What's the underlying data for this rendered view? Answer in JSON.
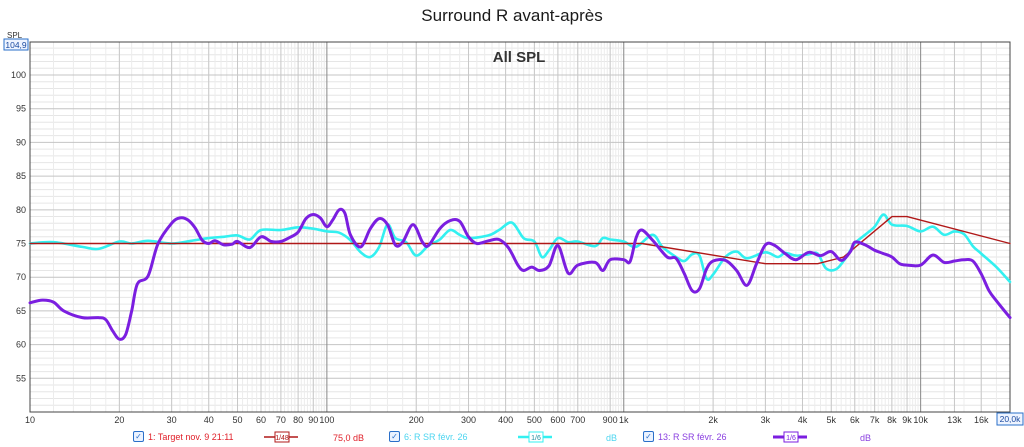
{
  "chart_data": {
    "type": "line",
    "title": "Surround R avant-après",
    "subtitle": "All SPL",
    "y_axis_unit": "SPL",
    "y_top_readout": "104,9",
    "x_scale": "log",
    "xlim": [
      10,
      20000
    ],
    "ylim": [
      50,
      104.9
    ],
    "grid": true,
    "x_ticks": [
      {
        "v": 10,
        "label": "10"
      },
      {
        "v": 20,
        "label": "20"
      },
      {
        "v": 30,
        "label": "30"
      },
      {
        "v": 40,
        "label": "40"
      },
      {
        "v": 50,
        "label": "50"
      },
      {
        "v": 60,
        "label": "60"
      },
      {
        "v": 70,
        "label": "70"
      },
      {
        "v": 80,
        "label": "80"
      },
      {
        "v": 90,
        "label": "90"
      },
      {
        "v": 100,
        "label": "100"
      },
      {
        "v": 200,
        "label": "200"
      },
      {
        "v": 300,
        "label": "300"
      },
      {
        "v": 400,
        "label": "400"
      },
      {
        "v": 500,
        "label": "500"
      },
      {
        "v": 600,
        "label": "600"
      },
      {
        "v": 700,
        "label": "700"
      },
      {
        "v": 900,
        "label": "900"
      },
      {
        "v": 1000,
        "label": "1k"
      },
      {
        "v": 2000,
        "label": "2k"
      },
      {
        "v": 3000,
        "label": "3k"
      },
      {
        "v": 4000,
        "label": "4k"
      },
      {
        "v": 5000,
        "label": "5k"
      },
      {
        "v": 6000,
        "label": "6k"
      },
      {
        "v": 7000,
        "label": "7k"
      },
      {
        "v": 8000,
        "label": "8k"
      },
      {
        "v": 9000,
        "label": "9k"
      },
      {
        "v": 10000,
        "label": "10k"
      },
      {
        "v": 13000,
        "label": "13k"
      },
      {
        "v": 16000,
        "label": "16k"
      },
      {
        "v": 20000,
        "label": "20,0k"
      }
    ],
    "y_ticks": [
      55,
      60,
      65,
      70,
      75,
      80,
      85,
      90,
      95,
      100
    ],
    "series": [
      {
        "name": "1: Target nov. 9 21:11",
        "color": "#b01818",
        "width": 1.4,
        "points": [
          [
            10,
            75
          ],
          [
            1150,
            75
          ],
          [
            3000,
            72
          ],
          [
            4500,
            72
          ],
          [
            5500,
            73
          ],
          [
            8000,
            79
          ],
          [
            9000,
            79
          ],
          [
            20000,
            75
          ]
        ]
      },
      {
        "name": "6: R SR févr. 26",
        "color": "#33f0f0",
        "width": 2.6,
        "points": [
          [
            10,
            75
          ],
          [
            12,
            75.2
          ],
          [
            15,
            74.5
          ],
          [
            17,
            74.2
          ],
          [
            20,
            75.3
          ],
          [
            22,
            75
          ],
          [
            25,
            75.4
          ],
          [
            30,
            75
          ],
          [
            35,
            75.4
          ],
          [
            40,
            75.8
          ],
          [
            45,
            76
          ],
          [
            50,
            76.2
          ],
          [
            55,
            75.6
          ],
          [
            60,
            77
          ],
          [
            70,
            77
          ],
          [
            80,
            77.4
          ],
          [
            90,
            77.2
          ],
          [
            100,
            76.8
          ],
          [
            110,
            76.6
          ],
          [
            120,
            75.5
          ],
          [
            130,
            73.7
          ],
          [
            140,
            73
          ],
          [
            150,
            74.5
          ],
          [
            160,
            77.8
          ],
          [
            170,
            75.8
          ],
          [
            185,
            75.2
          ],
          [
            200,
            73.2
          ],
          [
            220,
            74.7
          ],
          [
            240,
            75.6
          ],
          [
            260,
            77
          ],
          [
            280,
            76.3
          ],
          [
            300,
            75.8
          ],
          [
            350,
            76.2
          ],
          [
            380,
            77
          ],
          [
            420,
            78.1
          ],
          [
            460,
            75.8
          ],
          [
            500,
            75.3
          ],
          [
            530,
            73
          ],
          [
            560,
            74
          ],
          [
            600,
            75.8
          ],
          [
            650,
            75.2
          ],
          [
            700,
            75.3
          ],
          [
            800,
            74.6
          ],
          [
            850,
            75.8
          ],
          [
            900,
            75.6
          ],
          [
            1000,
            75.3
          ],
          [
            1100,
            74.5
          ],
          [
            1250,
            76.3
          ],
          [
            1350,
            74.5
          ],
          [
            1500,
            73
          ],
          [
            1600,
            72.4
          ],
          [
            1700,
            73.4
          ],
          [
            1800,
            73.2
          ],
          [
            1900,
            69.8
          ],
          [
            2000,
            70.4
          ],
          [
            2200,
            73
          ],
          [
            2400,
            73.8
          ],
          [
            2600,
            72.8
          ],
          [
            3000,
            73.7
          ],
          [
            3300,
            73
          ],
          [
            3500,
            73.6
          ],
          [
            3800,
            73.2
          ],
          [
            4200,
            73.4
          ],
          [
            4500,
            73.5
          ],
          [
            4800,
            71.3
          ],
          [
            5200,
            71.2
          ],
          [
            5600,
            72.9
          ],
          [
            6000,
            75
          ],
          [
            6500,
            76.3
          ],
          [
            7000,
            77.5
          ],
          [
            7500,
            79.3
          ],
          [
            8000,
            77.8
          ],
          [
            9000,
            77.6
          ],
          [
            10000,
            76.8
          ],
          [
            11000,
            77.5
          ],
          [
            12000,
            76.3
          ],
          [
            13000,
            76.8
          ],
          [
            14000,
            76.4
          ],
          [
            15000,
            74.6
          ],
          [
            16000,
            73.5
          ],
          [
            18000,
            71.5
          ],
          [
            20000,
            69.3
          ]
        ]
      },
      {
        "name": "13: R SR févr. 26",
        "color": "#7b1ee0",
        "width": 3,
        "points": [
          [
            10,
            66.2
          ],
          [
            11,
            66.6
          ],
          [
            12,
            66.3
          ],
          [
            13,
            65
          ],
          [
            15,
            64
          ],
          [
            17,
            64
          ],
          [
            18,
            63.7
          ],
          [
            19,
            62
          ],
          [
            20,
            60.8
          ],
          [
            21,
            61.5
          ],
          [
            22,
            65
          ],
          [
            23,
            69
          ],
          [
            25,
            70.2
          ],
          [
            27,
            75
          ],
          [
            30,
            78
          ],
          [
            32,
            78.8
          ],
          [
            34,
            78.5
          ],
          [
            36,
            77.3
          ],
          [
            38,
            75.5
          ],
          [
            40,
            75
          ],
          [
            42,
            75.4
          ],
          [
            45,
            74.8
          ],
          [
            48,
            74.9
          ],
          [
            50,
            75.3
          ],
          [
            55,
            74.4
          ],
          [
            60,
            76
          ],
          [
            65,
            75.3
          ],
          [
            70,
            75.3
          ],
          [
            75,
            75.9
          ],
          [
            80,
            76.7
          ],
          [
            85,
            78.7
          ],
          [
            90,
            79.3
          ],
          [
            95,
            78.8
          ],
          [
            100,
            77.5
          ],
          [
            105,
            78.6
          ],
          [
            110,
            80
          ],
          [
            115,
            79.5
          ],
          [
            120,
            76.3
          ],
          [
            130,
            74.5
          ],
          [
            140,
            77.2
          ],
          [
            150,
            78.7
          ],
          [
            160,
            77.8
          ],
          [
            170,
            74.8
          ],
          [
            180,
            75.2
          ],
          [
            195,
            77.8
          ],
          [
            210,
            75.2
          ],
          [
            220,
            74.7
          ],
          [
            240,
            77.2
          ],
          [
            260,
            78.4
          ],
          [
            280,
            78.3
          ],
          [
            300,
            76
          ],
          [
            320,
            75
          ],
          [
            350,
            75.4
          ],
          [
            380,
            75.6
          ],
          [
            410,
            74.3
          ],
          [
            440,
            71.8
          ],
          [
            460,
            71
          ],
          [
            490,
            71.5
          ],
          [
            520,
            71
          ],
          [
            560,
            71.7
          ],
          [
            600,
            74.7
          ],
          [
            650,
            70.6
          ],
          [
            700,
            71.8
          ],
          [
            800,
            72.2
          ],
          [
            850,
            71
          ],
          [
            900,
            72.6
          ],
          [
            1000,
            72.6
          ],
          [
            1050,
            72.3
          ],
          [
            1100,
            75.8
          ],
          [
            1150,
            77
          ],
          [
            1250,
            75.5
          ],
          [
            1400,
            73
          ],
          [
            1500,
            72.8
          ],
          [
            1600,
            70.5
          ],
          [
            1700,
            68
          ],
          [
            1800,
            68.3
          ],
          [
            1900,
            71.2
          ],
          [
            2000,
            72.4
          ],
          [
            2200,
            72.5
          ],
          [
            2400,
            71
          ],
          [
            2600,
            68.8
          ],
          [
            2800,
            72
          ],
          [
            3000,
            74.8
          ],
          [
            3200,
            74.8
          ],
          [
            3500,
            73.5
          ],
          [
            3800,
            72.6
          ],
          [
            4200,
            73.7
          ],
          [
            4600,
            73.2
          ],
          [
            5000,
            73.8
          ],
          [
            5400,
            72.5
          ],
          [
            5800,
            73.8
          ],
          [
            6000,
            75.2
          ],
          [
            6500,
            74.8
          ],
          [
            7000,
            74
          ],
          [
            7500,
            73.5
          ],
          [
            8000,
            73
          ],
          [
            8500,
            72
          ],
          [
            9000,
            71.8
          ],
          [
            10000,
            71.8
          ],
          [
            11000,
            73.3
          ],
          [
            12000,
            72.2
          ],
          [
            13000,
            72.4
          ],
          [
            14000,
            72.6
          ],
          [
            15000,
            72.4
          ],
          [
            16000,
            70.5
          ],
          [
            17000,
            68
          ],
          [
            18000,
            66.5
          ],
          [
            20000,
            64
          ]
        ]
      }
    ]
  },
  "legend": {
    "items": [
      {
        "label": "1: Target nov. 9 21:11",
        "color": "#e0202a",
        "smoothing": "1/48",
        "value": "75,0 dB",
        "swatch_color": "#b01818"
      },
      {
        "label": "6: R SR févr. 26",
        "color": "#4cd5f0",
        "smoothing": "1/6",
        "value": "dB",
        "swatch_color": "#33f0f0"
      },
      {
        "label": "13: R SR févr. 26",
        "color": "#8a3fe0",
        "smoothing": "1/6",
        "value": "dB",
        "swatch_color": "#7b1ee0"
      }
    ]
  }
}
